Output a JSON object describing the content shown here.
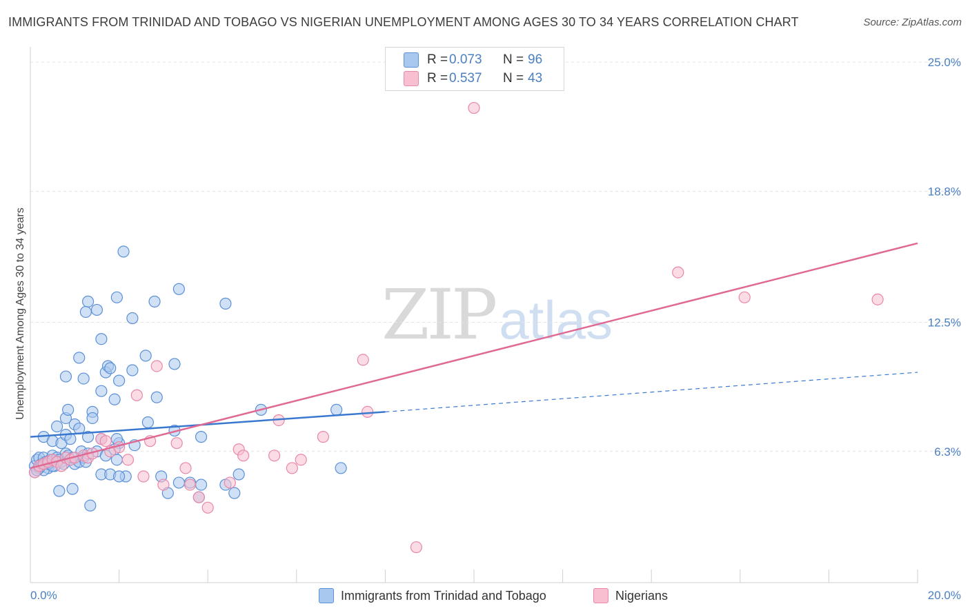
{
  "title": "IMMIGRANTS FROM TRINIDAD AND TOBAGO VS NIGERIAN UNEMPLOYMENT AMONG AGES 30 TO 34 YEARS CORRELATION CHART",
  "source": "Source: ZipAtlas.com",
  "watermark": {
    "zip": "ZIP",
    "atlas": "atlas"
  },
  "legend": {
    "rows": [
      {
        "r_label": "R =",
        "r_value": "0.073",
        "n_label": "N =",
        "n_value": "96"
      },
      {
        "r_label": "R =",
        "r_value": "0.537",
        "n_label": "N =",
        "n_value": "43"
      }
    ]
  },
  "colors": {
    "blue_fill": "#a9c8ef",
    "blue_stroke": "#5b8fd6",
    "blue_line": "#3a78d0",
    "pink_fill": "#f7bfd0",
    "pink_stroke": "#e887a8",
    "pink_line": "#e06994",
    "tick_label": "#4a7fc1",
    "grid": "#e3e3e3"
  },
  "chart_data": {
    "type": "scatter",
    "title": "IMMIGRANTS FROM TRINIDAD AND TOBAGO VS NIGERIAN UNEMPLOYMENT AMONG AGES 30 TO 34 YEARS CORRELATION CHART",
    "xlabel": "",
    "ylabel": "Unemployment Among Ages 30 to 34 years",
    "x_tick_labels": [
      "0.0%",
      "20.0%"
    ],
    "y_tick_labels": [
      "6.3%",
      "12.5%",
      "18.8%",
      "25.0%"
    ],
    "y_ticks": [
      6.3,
      12.5,
      18.8,
      25.0
    ],
    "xlim": [
      0,
      20
    ],
    "ylim": [
      0,
      25.6
    ],
    "grid": true,
    "legend_position": "top-center",
    "series": [
      {
        "name": "Immigrants from Trinidad and Tobago",
        "color": "#a9c8ef",
        "trend": {
          "x": [
            0,
            8
          ],
          "y": [
            7.0,
            8.2
          ],
          "dashed_to": [
            20,
            10.1
          ]
        },
        "points": [
          [
            0.1,
            5.6
          ],
          [
            0.1,
            5.3
          ],
          [
            0.15,
            5.9
          ],
          [
            0.2,
            6.0
          ],
          [
            0.25,
            5.7
          ],
          [
            0.3,
            6.0
          ],
          [
            0.35,
            5.8
          ],
          [
            0.4,
            5.5
          ],
          [
            0.45,
            5.9
          ],
          [
            0.3,
            5.4
          ],
          [
            0.5,
            6.1
          ],
          [
            0.55,
            5.6
          ],
          [
            0.6,
            6.0
          ],
          [
            0.7,
            5.8
          ],
          [
            0.8,
            6.2
          ],
          [
            0.9,
            5.9
          ],
          [
            1.0,
            5.7
          ],
          [
            1.1,
            5.8
          ],
          [
            1.15,
            6.3
          ],
          [
            1.2,
            6.0
          ],
          [
            0.2,
            5.5
          ],
          [
            0.4,
            5.7
          ],
          [
            0.5,
            5.6
          ],
          [
            0.65,
            5.9
          ],
          [
            0.75,
            5.7
          ],
          [
            0.85,
            6.1
          ],
          [
            0.95,
            6.0
          ],
          [
            1.25,
            5.8
          ],
          [
            1.3,
            6.2
          ],
          [
            0.15,
            5.4
          ],
          [
            0.3,
            7.0
          ],
          [
            0.5,
            6.8
          ],
          [
            0.6,
            7.5
          ],
          [
            0.7,
            6.7
          ],
          [
            0.8,
            7.1
          ],
          [
            0.9,
            6.9
          ],
          [
            1.0,
            7.6
          ],
          [
            1.1,
            7.4
          ],
          [
            1.3,
            7.0
          ],
          [
            1.4,
            8.2
          ],
          [
            0.8,
            7.9
          ],
          [
            0.85,
            8.3
          ],
          [
            1.4,
            7.9
          ],
          [
            1.6,
            9.2
          ],
          [
            1.7,
            10.1
          ],
          [
            1.75,
            10.4
          ],
          [
            1.8,
            10.3
          ],
          [
            1.9,
            8.8
          ],
          [
            2.0,
            9.7
          ],
          [
            2.3,
            10.2
          ],
          [
            2.6,
            10.9
          ],
          [
            2.85,
            8.9
          ],
          [
            2.8,
            13.5
          ],
          [
            2.3,
            12.7
          ],
          [
            2.0,
            6.7
          ],
          [
            1.95,
            6.9
          ],
          [
            1.9,
            6.4
          ],
          [
            1.95,
            5.9
          ],
          [
            1.6,
            6.9
          ],
          [
            1.5,
            6.3
          ],
          [
            1.7,
            6.1
          ],
          [
            1.6,
            5.2
          ],
          [
            1.8,
            5.2
          ],
          [
            2.15,
            5.1
          ],
          [
            2.0,
            5.1
          ],
          [
            2.35,
            6.6
          ],
          [
            2.65,
            7.7
          ],
          [
            2.95,
            5.1
          ],
          [
            3.1,
            4.3
          ],
          [
            3.25,
            7.3
          ],
          [
            3.35,
            4.8
          ],
          [
            3.6,
            4.8
          ],
          [
            3.8,
            4.1
          ],
          [
            3.85,
            4.7
          ],
          [
            3.85,
            7.0
          ],
          [
            4.4,
            4.7
          ],
          [
            4.6,
            4.3
          ],
          [
            4.7,
            5.2
          ],
          [
            5.2,
            8.3
          ],
          [
            6.9,
            8.3
          ],
          [
            7.0,
            5.5
          ],
          [
            3.25,
            10.5
          ],
          [
            3.35,
            14.1
          ],
          [
            4.4,
            13.4
          ],
          [
            2.1,
            15.9
          ],
          [
            1.95,
            13.7
          ],
          [
            1.3,
            13.5
          ],
          [
            1.5,
            13.1
          ],
          [
            1.25,
            13.0
          ],
          [
            1.6,
            11.7
          ],
          [
            1.1,
            10.8
          ],
          [
            1.2,
            9.8
          ],
          [
            0.8,
            9.9
          ],
          [
            0.65,
            4.4
          ],
          [
            0.95,
            4.5
          ],
          [
            1.35,
            3.7
          ]
        ]
      },
      {
        "name": "Nigerians",
        "color": "#f7bfd0",
        "trend": {
          "x": [
            0,
            20
          ],
          "y": [
            5.5,
            16.3
          ]
        },
        "points": [
          [
            0.1,
            5.3
          ],
          [
            0.2,
            5.6
          ],
          [
            0.3,
            5.7
          ],
          [
            0.4,
            5.8
          ],
          [
            0.5,
            5.9
          ],
          [
            0.6,
            5.8
          ],
          [
            0.7,
            5.6
          ],
          [
            0.8,
            6.0
          ],
          [
            0.9,
            5.9
          ],
          [
            1.0,
            6.0
          ],
          [
            1.2,
            6.1
          ],
          [
            1.3,
            6.0
          ],
          [
            1.4,
            6.2
          ],
          [
            1.6,
            6.9
          ],
          [
            1.7,
            6.8
          ],
          [
            1.8,
            6.3
          ],
          [
            2.0,
            6.5
          ],
          [
            2.2,
            5.9
          ],
          [
            2.4,
            9.0
          ],
          [
            2.55,
            5.1
          ],
          [
            2.7,
            6.8
          ],
          [
            2.85,
            10.4
          ],
          [
            3.0,
            4.7
          ],
          [
            3.3,
            6.7
          ],
          [
            3.5,
            5.5
          ],
          [
            3.6,
            4.7
          ],
          [
            3.8,
            4.1
          ],
          [
            4.0,
            3.6
          ],
          [
            4.5,
            4.8
          ],
          [
            4.7,
            6.4
          ],
          [
            4.8,
            6.1
          ],
          [
            5.5,
            6.1
          ],
          [
            5.6,
            7.8
          ],
          [
            5.9,
            5.5
          ],
          [
            6.1,
            5.9
          ],
          [
            6.6,
            7.0
          ],
          [
            7.5,
            10.7
          ],
          [
            7.6,
            8.2
          ],
          [
            8.7,
            1.7
          ],
          [
            10.0,
            22.8
          ],
          [
            14.6,
            14.9
          ],
          [
            16.1,
            13.7
          ],
          [
            19.1,
            13.6
          ]
        ]
      }
    ]
  },
  "bottom_legend": {
    "items": [
      {
        "label": "Immigrants from Trinidad and Tobago"
      },
      {
        "label": "Nigerians"
      }
    ]
  }
}
